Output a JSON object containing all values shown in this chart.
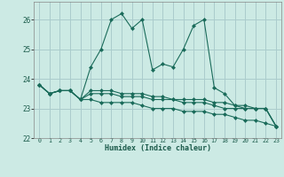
{
  "title": "",
  "xlabel": "Humidex (Indice chaleur)",
  "ylabel": "",
  "background_color": "#cceae4",
  "grid_color": "#aacccc",
  "line_color": "#1a6b5a",
  "xlim": [
    -0.5,
    23.5
  ],
  "ylim": [
    22.0,
    26.6
  ],
  "yticks": [
    22,
    23,
    24,
    25,
    26
  ],
  "xtick_labels": [
    "0",
    "1",
    "2",
    "3",
    "4",
    "5",
    "6",
    "7",
    "8",
    "9",
    "10",
    "11",
    "12",
    "13",
    "14",
    "15",
    "16",
    "17",
    "18",
    "19",
    "20",
    "21",
    "22",
    "23"
  ],
  "series": [
    [
      23.8,
      23.5,
      23.6,
      23.6,
      23.3,
      24.4,
      25.0,
      26.0,
      26.2,
      25.7,
      26.0,
      24.3,
      24.5,
      24.4,
      25.0,
      25.8,
      26.0,
      23.7,
      23.5,
      23.1,
      23.1,
      23.0,
      23.0,
      22.4
    ],
    [
      23.8,
      23.5,
      23.6,
      23.6,
      23.3,
      23.6,
      23.6,
      23.6,
      23.5,
      23.5,
      23.5,
      23.4,
      23.4,
      23.3,
      23.3,
      23.3,
      23.3,
      23.2,
      23.2,
      23.1,
      23.0,
      23.0,
      23.0,
      22.4
    ],
    [
      23.8,
      23.5,
      23.6,
      23.6,
      23.3,
      23.5,
      23.5,
      23.5,
      23.4,
      23.4,
      23.4,
      23.3,
      23.3,
      23.3,
      23.2,
      23.2,
      23.2,
      23.1,
      23.0,
      23.0,
      23.0,
      23.0,
      23.0,
      22.4
    ],
    [
      23.8,
      23.5,
      23.6,
      23.6,
      23.3,
      23.3,
      23.2,
      23.2,
      23.2,
      23.2,
      23.1,
      23.0,
      23.0,
      23.0,
      22.9,
      22.9,
      22.9,
      22.8,
      22.8,
      22.7,
      22.6,
      22.6,
      22.5,
      22.4
    ]
  ]
}
